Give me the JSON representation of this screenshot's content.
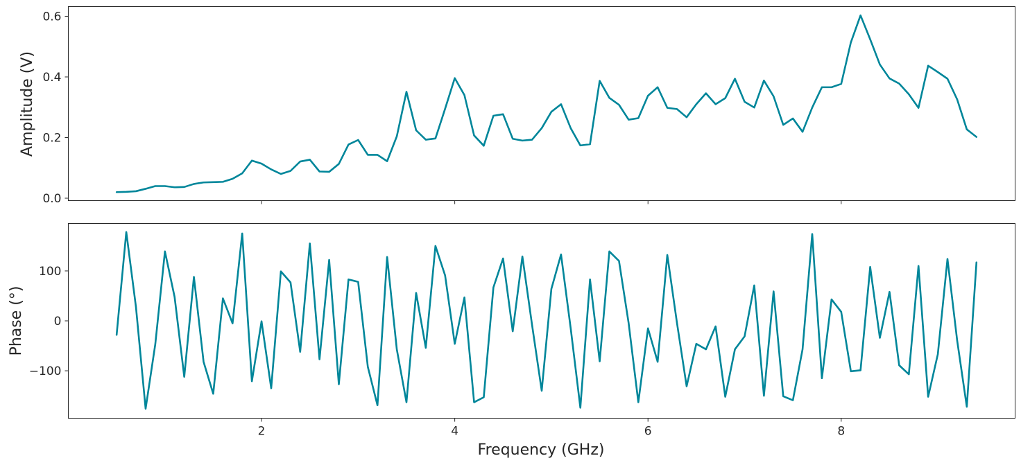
{
  "chart_data": {
    "type": "line",
    "xlabel": "Frequency (GHz)",
    "xlim": [
      0.0,
      9.8
    ],
    "x_ticks": [
      2,
      4,
      6,
      8
    ],
    "line_color": "#00869a",
    "grid": false,
    "x": [
      0.5,
      0.6,
      0.7,
      0.8,
      0.9,
      1.0,
      1.1,
      1.2,
      1.3,
      1.4,
      1.5,
      1.6,
      1.7,
      1.8,
      1.9,
      2.0,
      2.1,
      2.2,
      2.3,
      2.4,
      2.5,
      2.6,
      2.7,
      2.8,
      2.9,
      3.0,
      3.1,
      3.2,
      3.3,
      3.4,
      3.5,
      3.6,
      3.7,
      3.8,
      3.9,
      4.0,
      4.1,
      4.2,
      4.3,
      4.4,
      4.5,
      4.6,
      4.7,
      4.8,
      4.9,
      5.0,
      5.1,
      5.2,
      5.3,
      5.4,
      5.5,
      5.6,
      5.7,
      5.8,
      5.9,
      6.0,
      6.1,
      6.2,
      6.3,
      6.4,
      6.5,
      6.6,
      6.7,
      6.8,
      6.9,
      7.0,
      7.1,
      7.2,
      7.3,
      7.4,
      7.5,
      7.6,
      7.7,
      7.8,
      7.9,
      8.0,
      8.1,
      8.2,
      8.3,
      8.4,
      8.5,
      8.6,
      8.7,
      8.8,
      8.9,
      9.0,
      9.1,
      9.2,
      9.3,
      9.4
    ],
    "panels": [
      {
        "ylabel": "Amplitude (V)",
        "ylim": [
          -0.008,
          0.632
        ],
        "y_ticks": [
          0.0,
          0.2,
          0.4,
          0.6
        ],
        "y_tick_labels": [
          "0.0",
          "0.2",
          "0.4",
          "0.6"
        ],
        "values": [
          0.02,
          0.021,
          0.023,
          0.031,
          0.04,
          0.04,
          0.036,
          0.037,
          0.047,
          0.052,
          0.053,
          0.054,
          0.064,
          0.082,
          0.124,
          0.114,
          0.095,
          0.08,
          0.09,
          0.121,
          0.127,
          0.088,
          0.087,
          0.113,
          0.177,
          0.192,
          0.143,
          0.143,
          0.122,
          0.204,
          0.351,
          0.224,
          0.193,
          0.197,
          0.295,
          0.396,
          0.34,
          0.207,
          0.173,
          0.272,
          0.277,
          0.196,
          0.19,
          0.193,
          0.231,
          0.285,
          0.31,
          0.231,
          0.174,
          0.178,
          0.387,
          0.331,
          0.308,
          0.259,
          0.264,
          0.338,
          0.366,
          0.298,
          0.294,
          0.267,
          0.31,
          0.346,
          0.31,
          0.33,
          0.394,
          0.318,
          0.299,
          0.388,
          0.336,
          0.242,
          0.263,
          0.219,
          0.299,
          0.366,
          0.366,
          0.377,
          0.514,
          0.603,
          0.524,
          0.441,
          0.395,
          0.378,
          0.343,
          0.298,
          0.437,
          0.416,
          0.394,
          0.326,
          0.227,
          0.202
        ]
      },
      {
        "ylabel": "Phase (°)",
        "ylim": [
          -195,
          195
        ],
        "y_ticks": [
          -100,
          0,
          100
        ],
        "y_tick_labels": [
          "−100",
          "0",
          "100"
        ],
        "values": [
          -28,
          178,
          28,
          -176,
          -47,
          139,
          48,
          -112,
          88,
          -82,
          -146,
          45,
          -5,
          175,
          -121,
          -1,
          -135,
          99,
          77,
          -62,
          155,
          -77,
          122,
          -127,
          83,
          78,
          -92,
          -169,
          128,
          -57,
          -163,
          56,
          -54,
          150,
          91,
          -46,
          47,
          -163,
          -153,
          67,
          125,
          -21,
          129,
          -8,
          -140,
          64,
          133,
          -15,
          -174,
          83,
          -81,
          139,
          120,
          -5,
          -163,
          -15,
          -82,
          132,
          -4,
          -131,
          -46,
          -57,
          -11,
          -152,
          -57,
          -31,
          71,
          -150,
          59,
          -151,
          -159,
          -57,
          174,
          -115,
          43,
          18,
          -101,
          -99,
          108,
          -34,
          58,
          -89,
          -107,
          110,
          -152,
          -67,
          124,
          -39,
          -172,
          117
        ]
      }
    ]
  }
}
